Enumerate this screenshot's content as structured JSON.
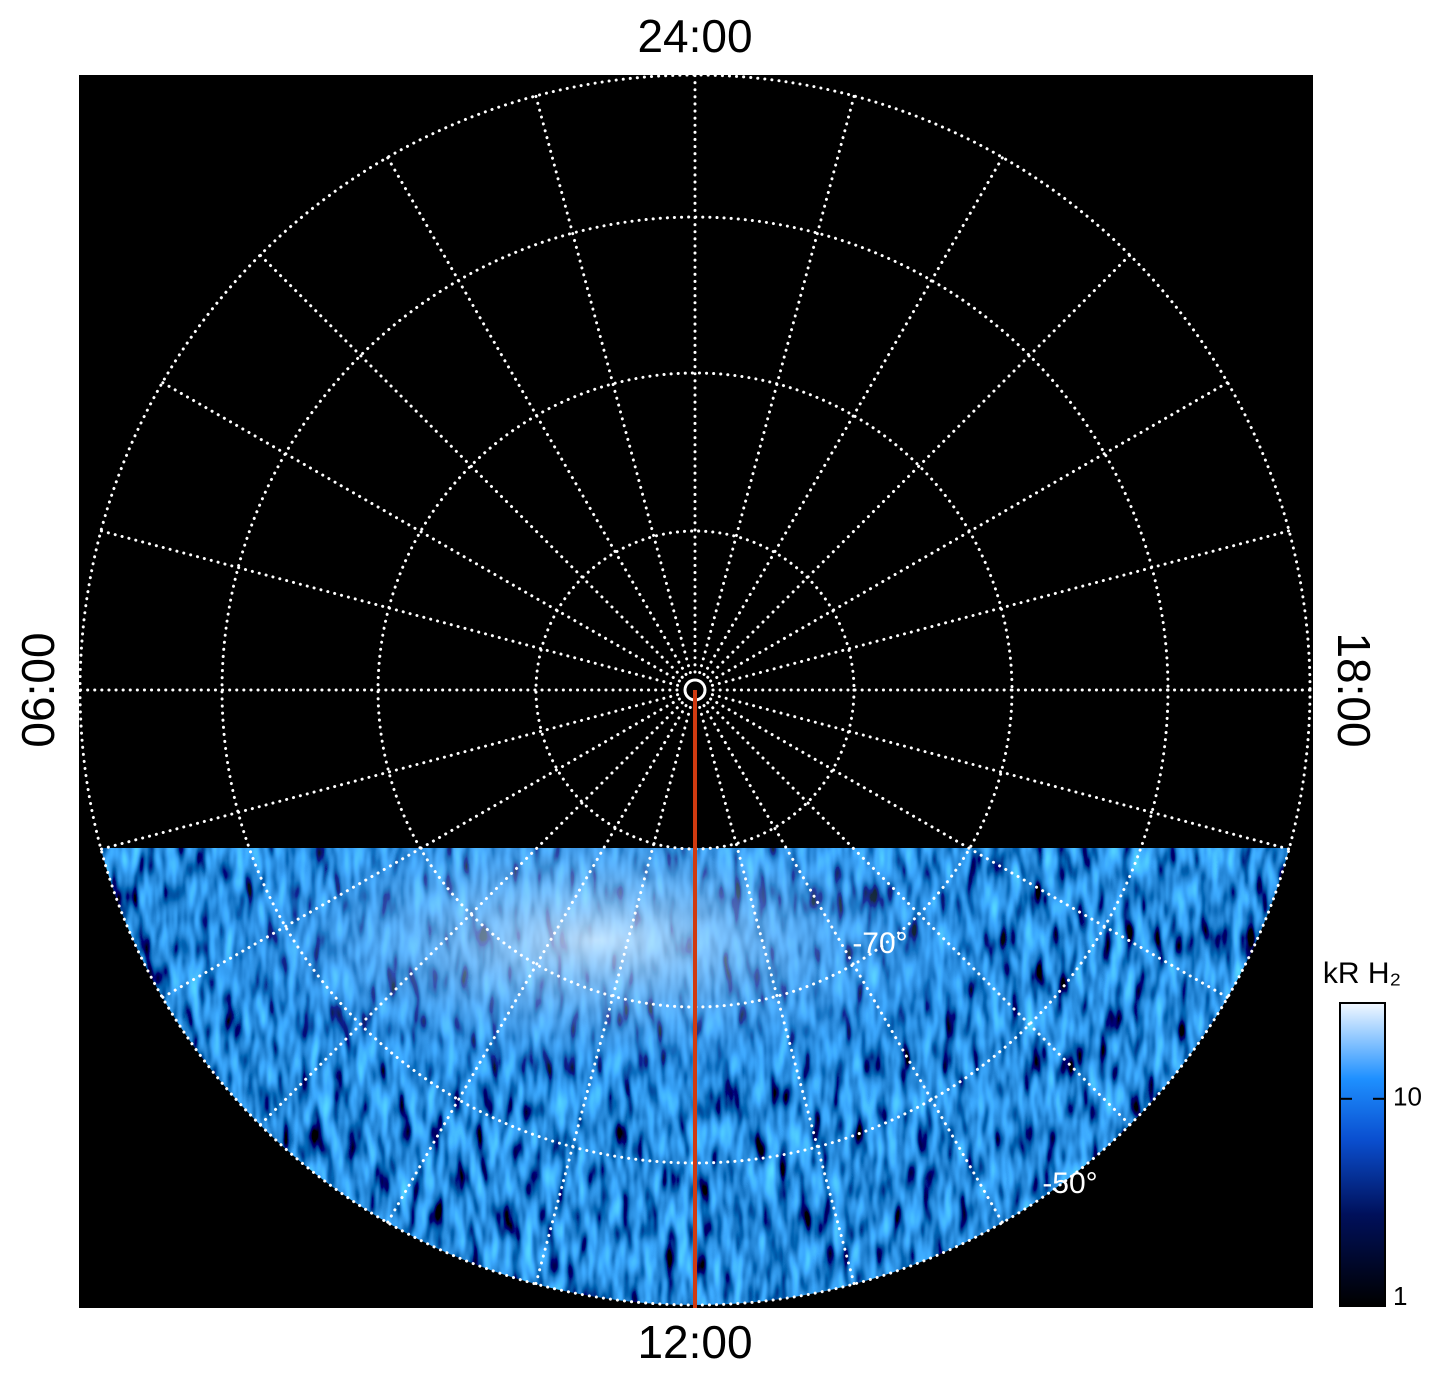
{
  "chart_data": {
    "type": "polar-image",
    "local_time_labels": {
      "top": "24:00",
      "bottom": "12:00",
      "left": "06:00",
      "right": "18:00"
    },
    "latitude_labels": [
      "-70°",
      "-50°"
    ],
    "colorbar": {
      "title": "kR H₂",
      "range": [
        1,
        29
      ],
      "ticks": [
        1,
        10
      ],
      "log": true
    },
    "noon_line_color": "#d03a10"
  }
}
